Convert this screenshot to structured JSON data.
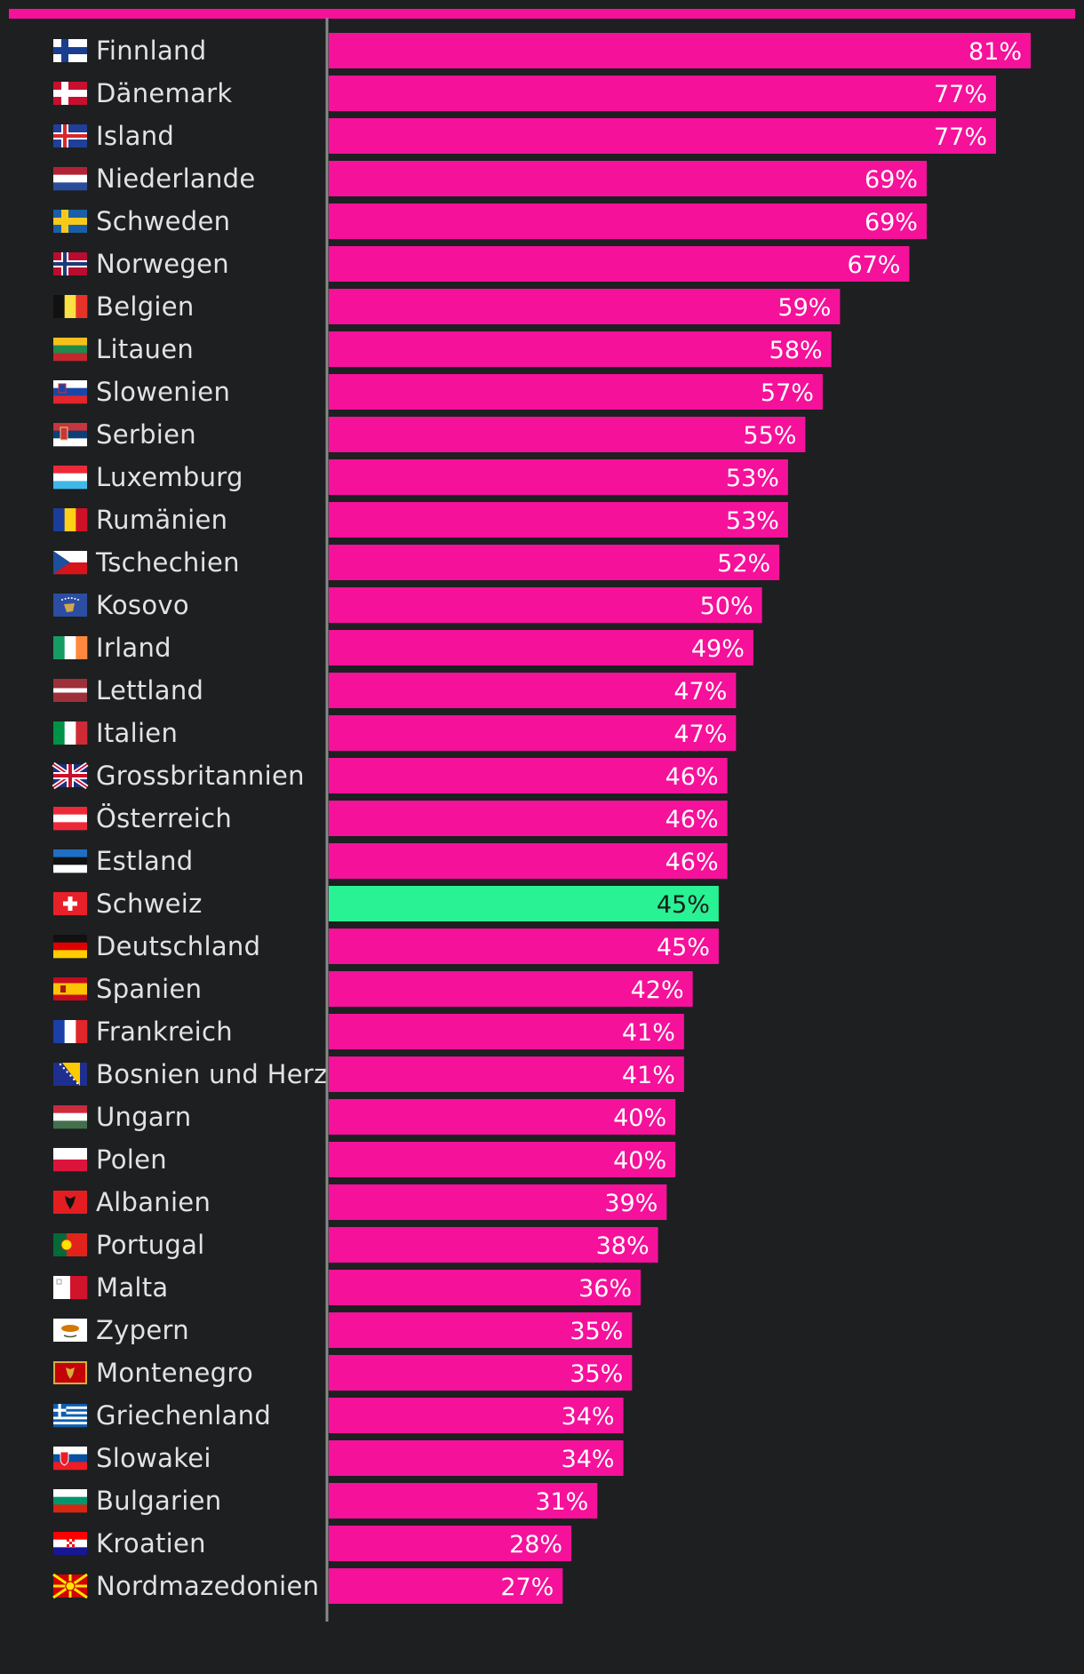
{
  "chart_data": {
    "type": "bar",
    "orientation": "horizontal",
    "title": "",
    "xlabel": "",
    "ylabel": "",
    "xlim": [
      0,
      100
    ],
    "unit": "%",
    "bar_color": "#f5119a",
    "highlight_color": "#28f294",
    "highlight_category": "Schweiz",
    "categories": [
      "Finnland",
      "Dänemark",
      "Island",
      "Niederlande",
      "Schweden",
      "Norwegen",
      "Belgien",
      "Litauen",
      "Slowenien",
      "Serbien",
      "Luxemburg",
      "Rumänien",
      "Tschechien",
      "Kosovo",
      "Irland",
      "Lettland",
      "Italien",
      "Grossbritannien",
      "Österreich",
      "Estland",
      "Schweiz",
      "Deutschland",
      "Spanien",
      "Frankreich",
      "Bosnien und Herz.",
      "Ungarn",
      "Polen",
      "Albanien",
      "Portugal",
      "Malta",
      "Zypern",
      "Montenegro",
      "Griechenland",
      "Slowakei",
      "Bulgarien",
      "Kroatien",
      "Nordmazedonien"
    ],
    "values": [
      81,
      77,
      77,
      69,
      69,
      67,
      59,
      58,
      57,
      55,
      53,
      53,
      52,
      50,
      49,
      47,
      47,
      46,
      46,
      46,
      45,
      45,
      42,
      41,
      41,
      40,
      40,
      39,
      38,
      36,
      35,
      35,
      34,
      34,
      31,
      28,
      27
    ],
    "flags": [
      "finland-flag-icon",
      "denmark-flag-icon",
      "iceland-flag-icon",
      "netherlands-flag-icon",
      "sweden-flag-icon",
      "norway-flag-icon",
      "belgium-flag-icon",
      "lithuania-flag-icon",
      "slovenia-flag-icon",
      "serbia-flag-icon",
      "luxembourg-flag-icon",
      "romania-flag-icon",
      "czechia-flag-icon",
      "kosovo-flag-icon",
      "ireland-flag-icon",
      "latvia-flag-icon",
      "italy-flag-icon",
      "uk-flag-icon",
      "austria-flag-icon",
      "estonia-flag-icon",
      "switzerland-flag-icon",
      "germany-flag-icon",
      "spain-flag-icon",
      "france-flag-icon",
      "bosnia-flag-icon",
      "hungary-flag-icon",
      "poland-flag-icon",
      "albania-flag-icon",
      "portugal-flag-icon",
      "malta-flag-icon",
      "cyprus-flag-icon",
      "montenegro-flag-icon",
      "greece-flag-icon",
      "slovakia-flag-icon",
      "bulgaria-flag-icon",
      "croatia-flag-icon",
      "north-macedonia-flag-icon"
    ]
  }
}
